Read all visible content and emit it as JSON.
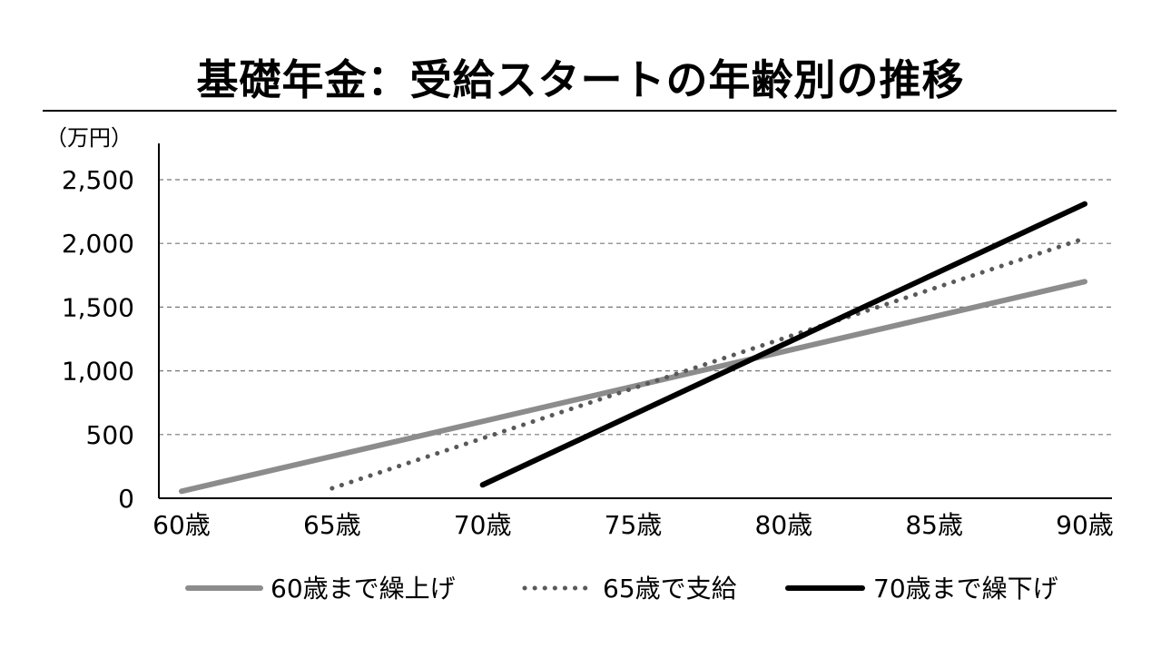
{
  "chart_data": {
    "type": "line",
    "title": "基礎年金：受給スタートの年齢別の推移",
    "ylabel": "（万円）",
    "xlabel": "",
    "ylim": [
      0,
      2500
    ],
    "yticks": [
      0,
      500,
      1000,
      1500,
      2000,
      2500
    ],
    "ytick_labels": [
      "0",
      "500",
      "1,000",
      "1,500",
      "2,000",
      "2,500"
    ],
    "xlim": [
      60,
      90
    ],
    "xticks": [
      60,
      65,
      70,
      75,
      80,
      85,
      90
    ],
    "xtick_labels": [
      "60歳",
      "65歳",
      "70歳",
      "75歳",
      "80歳",
      "85歳",
      "90歳"
    ],
    "grid": "horizontal-dashed",
    "legend_position": "bottom",
    "series": [
      {
        "name": "60歳まで繰上げ",
        "x": [
          60,
          90
        ],
        "y": [
          55,
          1700
        ],
        "color": "#8c8c8c",
        "style": "solid"
      },
      {
        "name": "65歳で支給",
        "x": [
          65,
          90
        ],
        "y": [
          78,
          2040
        ],
        "color": "#595959",
        "style": "dotted"
      },
      {
        "name": "70歳まで繰下げ",
        "x": [
          70,
          90
        ],
        "y": [
          105,
          2310
        ],
        "color": "#000000",
        "style": "solid"
      }
    ]
  }
}
